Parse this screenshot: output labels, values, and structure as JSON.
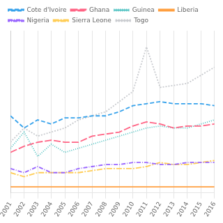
{
  "chart_data": {
    "type": "line",
    "x": [
      2001,
      2002,
      2003,
      2004,
      2005,
      2006,
      2007,
      2008,
      2009,
      2010,
      2011,
      2012,
      2013,
      2014,
      2015,
      2016
    ],
    "series": [
      {
        "name": "Cote d'Ivoire",
        "values": [
          38,
          32,
          36,
          34,
          37,
          37,
          38,
          38,
          40,
          43,
          44,
          45,
          44,
          44,
          44,
          43
        ],
        "line_style": "dashed"
      },
      {
        "name": "Ghana",
        "values": [
          20,
          23,
          25,
          26,
          25,
          25,
          28,
          29,
          30,
          33,
          35,
          34,
          32,
          33,
          33,
          34
        ],
        "line_style": "longdash"
      },
      {
        "name": "Guinea",
        "values": [
          22,
          30,
          18,
          24,
          20,
          22,
          24,
          26,
          28,
          30,
          32,
          33,
          32,
          32,
          34,
          36
        ],
        "line_style": "dotted"
      },
      {
        "name": "Liberia",
        "values": [
          3,
          3,
          3,
          3,
          3,
          3,
          3,
          3,
          3,
          3,
          3,
          3,
          3,
          3,
          3,
          3
        ],
        "line_style": "solid"
      },
      {
        "name": "Nigeria",
        "values": [
          12,
          10,
          13,
          10,
          10,
          12,
          13,
          14,
          14,
          15,
          15,
          14,
          14,
          15,
          15,
          15
        ],
        "line_style": "dashdot"
      },
      {
        "name": "Sierra Leone",
        "values": [
          10,
          8,
          10,
          10,
          10,
          10,
          11,
          12,
          12,
          12,
          13,
          15,
          14,
          14,
          15,
          16
        ],
        "line_style": "longdashdot"
      },
      {
        "name": "Togo",
        "values": [
          25,
          32,
          28,
          30,
          32,
          36,
          38,
          40,
          45,
          50,
          72,
          52,
          53,
          54,
          58,
          62
        ],
        "line_style": "shortdash"
      }
    ],
    "xlim": [
      2001,
      2016
    ],
    "ylim": [
      0,
      80
    ],
    "xticks": [
      2001,
      2002,
      2003,
      2004,
      2005,
      2006,
      2007,
      2008,
      2009,
      2010,
      2011,
      2012,
      2013,
      2014,
      2015,
      2016
    ],
    "yticks": [],
    "grid": true,
    "legend": "upper left",
    "tick_labels": "x"
  }
}
